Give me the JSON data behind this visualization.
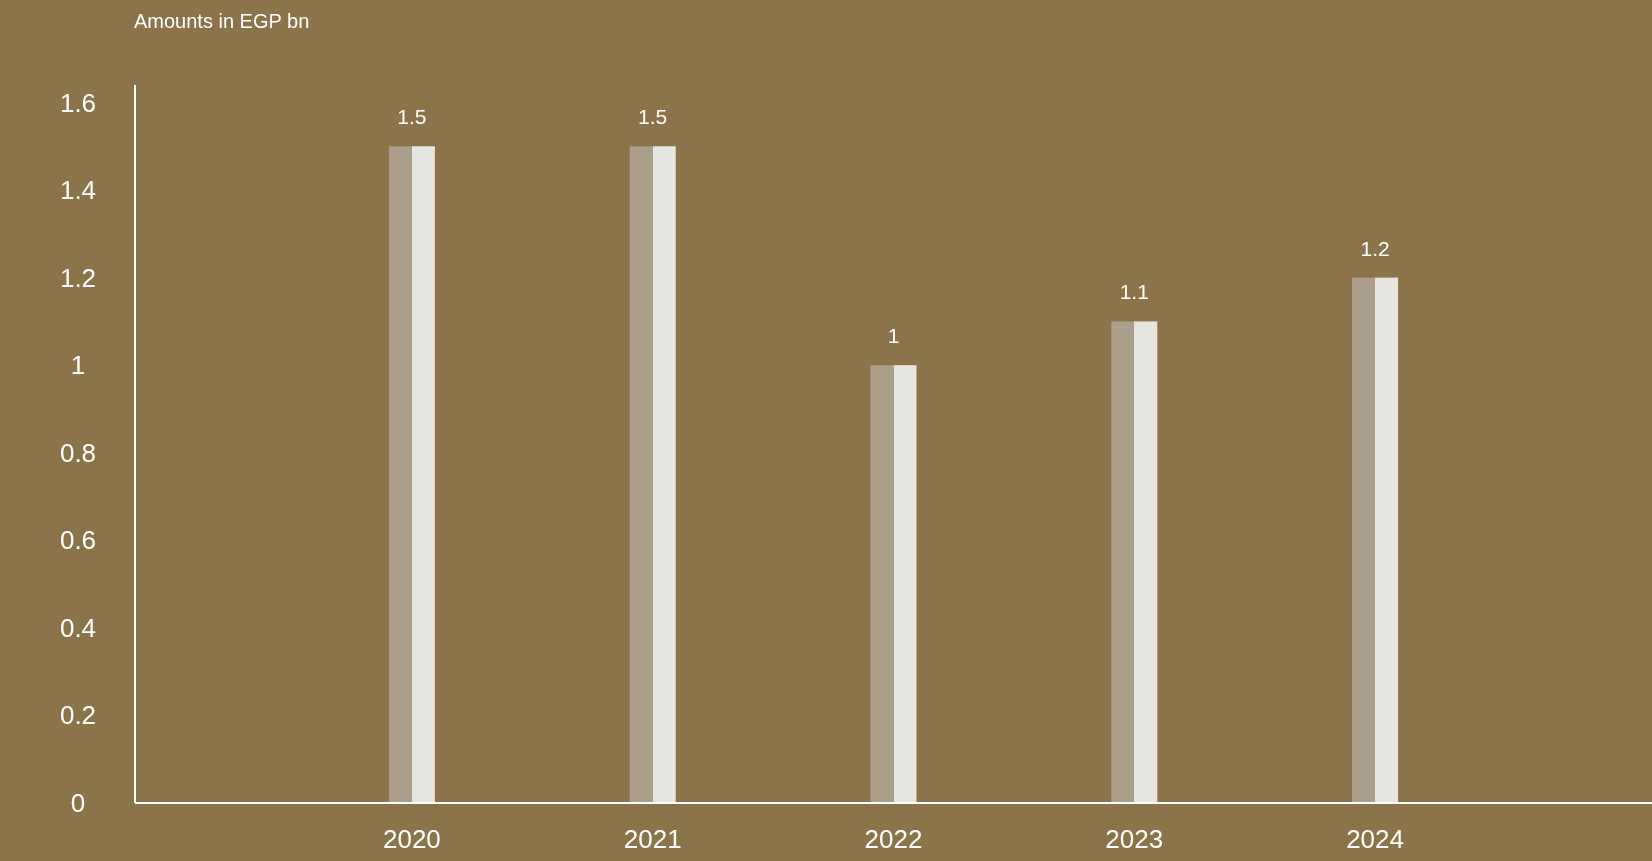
{
  "chart_data": {
    "type": "bar",
    "ylabel": "Amounts in EGP bn",
    "categories": [
      "2020",
      "2021",
      "2022",
      "2023",
      "2024"
    ],
    "values": [
      1.5,
      1.5,
      1,
      1.1,
      1.2
    ],
    "color": "#e7e5e2",
    "ylim": [
      0,
      1.64
    ],
    "yticks": [
      0,
      0.2,
      0.4,
      0.6,
      0.8,
      1,
      1.2,
      1.4,
      1.6
    ],
    "data_labels": true,
    "grid": false
  }
}
